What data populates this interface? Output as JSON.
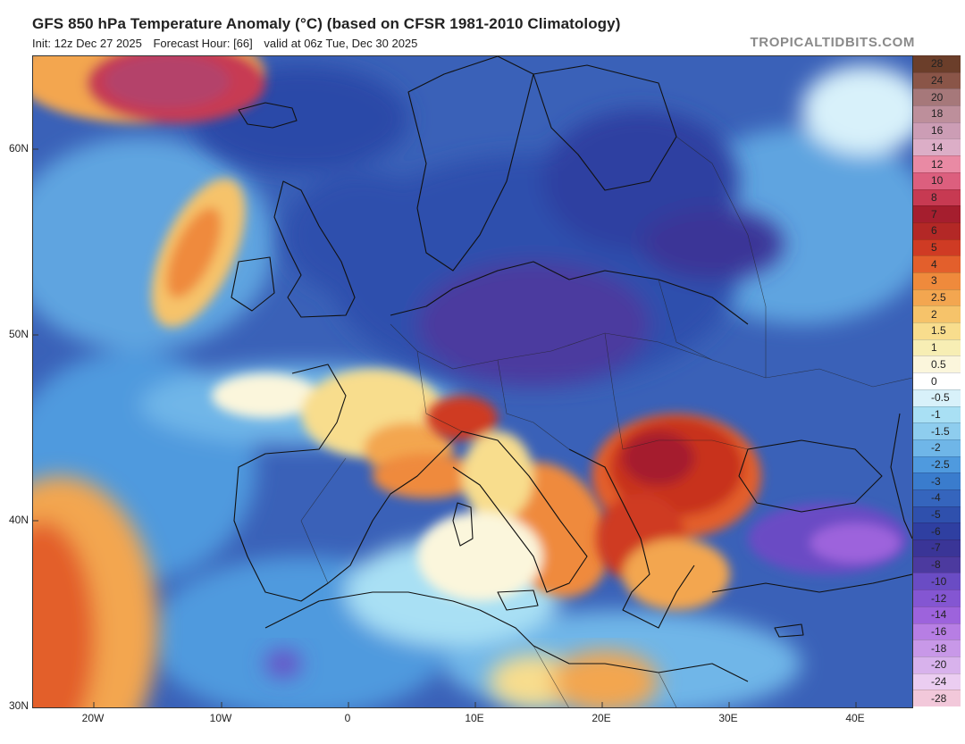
{
  "header": {
    "title": "GFS 850 hPa Temperature Anomaly (°C) (based on CFSR 1981-2010 Climatology)",
    "init": "Init: 12z Dec 27 2025",
    "forecast_hour": "Forecast Hour: [66]",
    "valid": "valid at 06z Tue, Dec 30 2025",
    "brand": "TROPICALTIDBITS.COM"
  },
  "map": {
    "lat_labels": [
      "60N",
      "50N",
      "40N",
      "30N"
    ],
    "lon_labels": [
      "20W",
      "10W",
      "0",
      "10E",
      "20E",
      "30E",
      "40E"
    ],
    "colors": {
      "ocean_cold": "#3a61b8",
      "light_blue": "#6fb6e8",
      "pale_blue": "#a9dcf2",
      "warm_red": "#c8301f",
      "orange": "#ee8b3a",
      "pale_yellow": "#f6e3a8",
      "purple": "#6a4cc4",
      "magenta": "#b4436a",
      "deep_blue": "#2a48a8"
    }
  },
  "colorbar": {
    "labels": [
      "28",
      "24",
      "20",
      "18",
      "16",
      "14",
      "12",
      "10",
      "8",
      "7",
      "6",
      "5",
      "4",
      "3",
      "2.5",
      "2",
      "1.5",
      "1",
      "0.5",
      "0",
      "-0.5",
      "-1",
      "-1.5",
      "-2",
      "-2.5",
      "-3",
      "-4",
      "-5",
      "-6",
      "-7",
      "-8",
      "-10",
      "-12",
      "-14",
      "-16",
      "-18",
      "-20",
      "-24",
      "-28"
    ],
    "colors": [
      "#6b3e2a",
      "#8a5548",
      "#a6787a",
      "#bd8f9b",
      "#cc9db5",
      "#dcaec7",
      "#e98aa4",
      "#dc5f7e",
      "#c73a52",
      "#a51e2e",
      "#b32826",
      "#cf3b24",
      "#e35f2c",
      "#ef8a3c",
      "#f3a650",
      "#f6c36a",
      "#f8dd8d",
      "#f7eeb4",
      "#fbf6dc",
      "#ffffff",
      "#d8f1fa",
      "#a9e0f4",
      "#8ecdee",
      "#6fb6e8",
      "#4f9ade",
      "#3a7ccd",
      "#3565bd",
      "#2f50ad",
      "#2f3fa1",
      "#3a3597",
      "#4c3a9f",
      "#6a4cc4",
      "#8456d2",
      "#9d63dc",
      "#b77ee4",
      "#c898e8",
      "#d8b2ec",
      "#ebcdf1",
      "#f2c8da"
    ]
  }
}
